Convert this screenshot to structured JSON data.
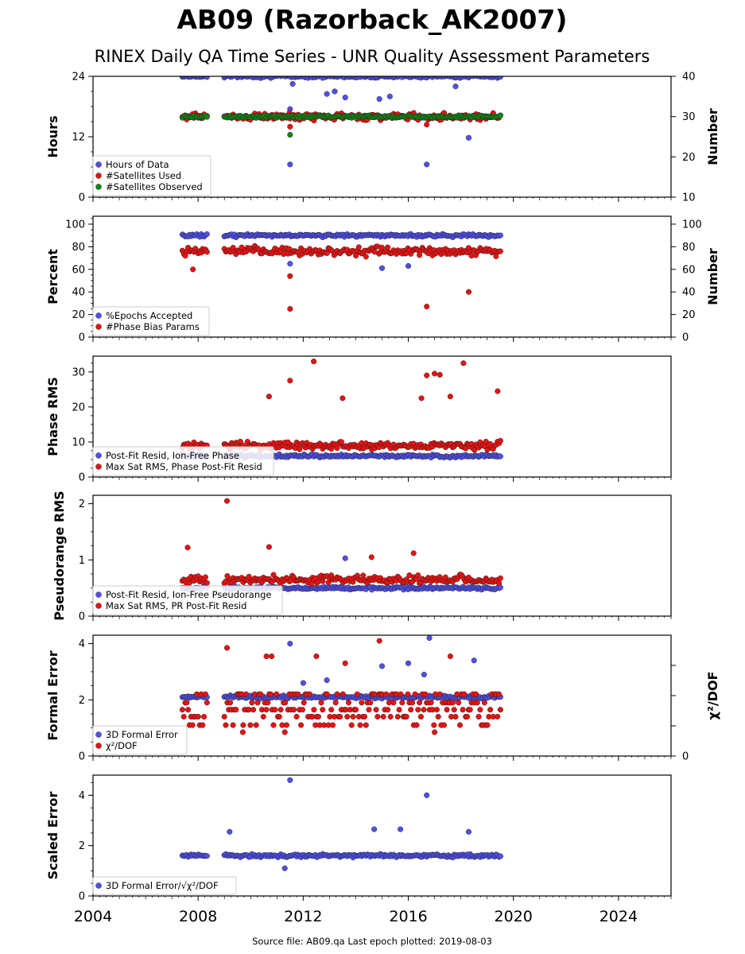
{
  "figure": {
    "title": "AB09 (Razorback_AK2007)",
    "subtitle": "RINEX Daily QA Time Series - UNR Quality Assessment Parameters",
    "footer": "Source file: AB09.qa Last epoch plotted: 2019-08-03",
    "x_tick_labels": [
      "2004",
      "2008",
      "2012",
      "2016",
      "2020",
      "2024"
    ],
    "colors": {
      "blue": "#5050f0",
      "red": "#ee1111",
      "green": "#118811",
      "dark_navy": "#1a1a6a"
    }
  },
  "chart_data": [
    {
      "type": "scatter",
      "ylabel": "Hours",
      "ylabel_right": "Number",
      "xlim": [
        2004,
        2026
      ],
      "ylim": [
        0,
        24
      ],
      "ylim_right": [
        10,
        40
      ],
      "y_ticks": [
        0,
        12,
        24
      ],
      "y_ticks_right": [
        10,
        20,
        30,
        40
      ],
      "legend": [
        "Hours of Data",
        "#Satellites Used",
        "#Satellites Observed"
      ],
      "legend_position": "lower-left",
      "series": [
        {
          "name": "Hours of Data",
          "axis": "left",
          "color": "blue",
          "typical": 24.0,
          "points": [
            [
              2011.5,
              17.5
            ],
            [
              2011.5,
              6.5
            ],
            [
              2016.7,
              6.5
            ],
            [
              2018.3,
              11.8
            ],
            [
              2012.9,
              20.5
            ],
            [
              2013.6,
              19.8
            ],
            [
              2014.9,
              19.5
            ],
            [
              2015.3,
              20.0
            ],
            [
              2017.8,
              22.0
            ],
            [
              2011.6,
              22.5
            ],
            [
              2013.2,
              21.0
            ]
          ]
        },
        {
          "name": "#Satellites Used",
          "axis": "right",
          "color": "red",
          "typical": 30.0,
          "points": [
            [
              2011.5,
              27.5
            ],
            [
              2016.7,
              28.0
            ],
            [
              2011.5,
              29.5
            ]
          ]
        },
        {
          "name": "#Satellites Observed",
          "axis": "right",
          "color": "green",
          "typical": 30.0,
          "points": [
            [
              2011.5,
              25.5
            ]
          ]
        }
      ]
    },
    {
      "type": "scatter",
      "ylabel": "Percent",
      "ylabel_right": "Number",
      "xlim": [
        2004,
        2026
      ],
      "ylim": [
        0,
        107
      ],
      "ylim_right": [
        0,
        107
      ],
      "y_ticks": [
        0,
        20,
        40,
        60,
        80,
        100
      ],
      "y_ticks_right": [
        0,
        20,
        40,
        60,
        80,
        100
      ],
      "legend": [
        "%Epochs Accepted",
        "#Phase Bias Params"
      ],
      "legend_position": "lower-left",
      "series": [
        {
          "name": "%Epochs Accepted",
          "axis": "left",
          "color": "blue",
          "typical": 90.0,
          "points": [
            [
              2015.0,
              61.0
            ],
            [
              2016.0,
              63.0
            ],
            [
              2011.5,
              65.0
            ]
          ]
        },
        {
          "name": "#Phase Bias Params",
          "axis": "right",
          "color": "red",
          "typical": 76.0,
          "points": [
            [
              2011.5,
              25.0
            ],
            [
              2016.7,
              27.0
            ],
            [
              2018.3,
              40.0
            ],
            [
              2011.5,
              54.0
            ],
            [
              2007.8,
              60.0
            ]
          ]
        }
      ]
    },
    {
      "type": "scatter",
      "ylabel": "Phase RMS",
      "xlim": [
        2004,
        2026
      ],
      "ylim": [
        0,
        34.5
      ],
      "y_ticks": [
        0,
        10,
        20,
        30
      ],
      "legend": [
        "Post-Fit Resid, Ion-Free Phase",
        "Max Sat RMS, Phase Post-Fit Resid"
      ],
      "legend_position": "lower-left",
      "series": [
        {
          "name": "Post-Fit Resid, Ion-Free Phase",
          "axis": "left",
          "color": "blue",
          "typical": 6.0,
          "points": []
        },
        {
          "name": "Max Sat RMS, Phase Post-Fit Resid",
          "axis": "left",
          "color": "red",
          "typical": 9.0,
          "points": [
            [
              2012.4,
              33.0
            ],
            [
              2018.1,
              32.5
            ],
            [
              2017.0,
              29.5
            ],
            [
              2017.2,
              29.2
            ],
            [
              2016.7,
              29.0
            ],
            [
              2011.5,
              27.5
            ],
            [
              2019.4,
              24.5
            ],
            [
              2010.7,
              23.0
            ],
            [
              2013.5,
              22.5
            ],
            [
              2017.6,
              23.0
            ],
            [
              2016.5,
              22.5
            ]
          ]
        }
      ]
    },
    {
      "type": "scatter",
      "ylabel": "Pseudorange RMS",
      "xlim": [
        2004,
        2026
      ],
      "ylim": [
        0,
        2.15
      ],
      "y_ticks": [
        0,
        1,
        2
      ],
      "legend": [
        "Post-Fit Resid, Ion-Free Pseudorange",
        "Max Sat RMS, PR Post-Fit Resid"
      ],
      "legend_position": "lower-left",
      "series": [
        {
          "name": "Post-Fit Resid, Ion-Free Pseudorange",
          "axis": "left",
          "color": "blue",
          "typical": 0.5,
          "points": [
            [
              2013.6,
              1.03
            ]
          ]
        },
        {
          "name": "Max Sat RMS, PR Post-Fit Resid",
          "axis": "left",
          "color": "red",
          "typical": 0.65,
          "points": [
            [
              2009.1,
              2.05
            ],
            [
              2007.6,
              1.22
            ],
            [
              2010.7,
              1.23
            ],
            [
              2016.2,
              1.12
            ],
            [
              2014.6,
              1.05
            ]
          ]
        }
      ]
    },
    {
      "type": "scatter",
      "ylabel": "Formal Error",
      "ylabel_right": "χ²/DOF",
      "xlim": [
        2004,
        2026
      ],
      "ylim": [
        0,
        4.3
      ],
      "y_ticks": [
        0,
        2,
        4
      ],
      "y_ticks_right": [
        0
      ],
      "legend": [
        "3D Formal Error",
        "χ²/DOF"
      ],
      "legend_position": "lower-left",
      "series": [
        {
          "name": "3D Formal Error",
          "axis": "left",
          "color": "blue",
          "typical": 2.1,
          "points": [
            [
              2011.5,
              4.0
            ],
            [
              2016.8,
              4.2
            ],
            [
              2018.5,
              3.4
            ],
            [
              2016.0,
              3.3
            ],
            [
              2015.0,
              3.2
            ],
            [
              2016.6,
              2.9
            ],
            [
              2012.0,
              2.6
            ],
            [
              2012.9,
              2.7
            ]
          ]
        },
        {
          "name": "χ²/DOF",
          "axis": "left",
          "color": "red",
          "typical": 1.6,
          "levels": [
            1.1,
            1.4,
            1.65,
            1.9,
            2.2
          ],
          "points": [
            [
              2014.9,
              4.1
            ],
            [
              2009.1,
              3.85
            ],
            [
              2010.6,
              3.55
            ],
            [
              2010.8,
              3.55
            ],
            [
              2012.5,
              3.55
            ],
            [
              2017.6,
              3.55
            ],
            [
              2013.6,
              3.3
            ],
            [
              2011.3,
              0.85
            ],
            [
              2017.0,
              0.85
            ],
            [
              2009.7,
              0.85
            ]
          ]
        }
      ]
    },
    {
      "type": "scatter",
      "ylabel": "Scaled Error",
      "xlim": [
        2004,
        2026
      ],
      "ylim": [
        0,
        4.8
      ],
      "y_ticks": [
        0,
        2,
        4
      ],
      "legend": [
        "3D Formal Error/√χ²/DOF"
      ],
      "legend_position": "lower-left",
      "series": [
        {
          "name": "3D Formal Error/√χ²/DOF",
          "axis": "left",
          "color": "blue",
          "typical": 1.6,
          "points": [
            [
              2011.5,
              4.6
            ],
            [
              2016.7,
              4.0
            ],
            [
              2009.2,
              2.55
            ],
            [
              2014.7,
              2.65
            ],
            [
              2015.7,
              2.65
            ],
            [
              2018.3,
              2.55
            ],
            [
              2011.3,
              1.1
            ]
          ]
        }
      ]
    }
  ]
}
